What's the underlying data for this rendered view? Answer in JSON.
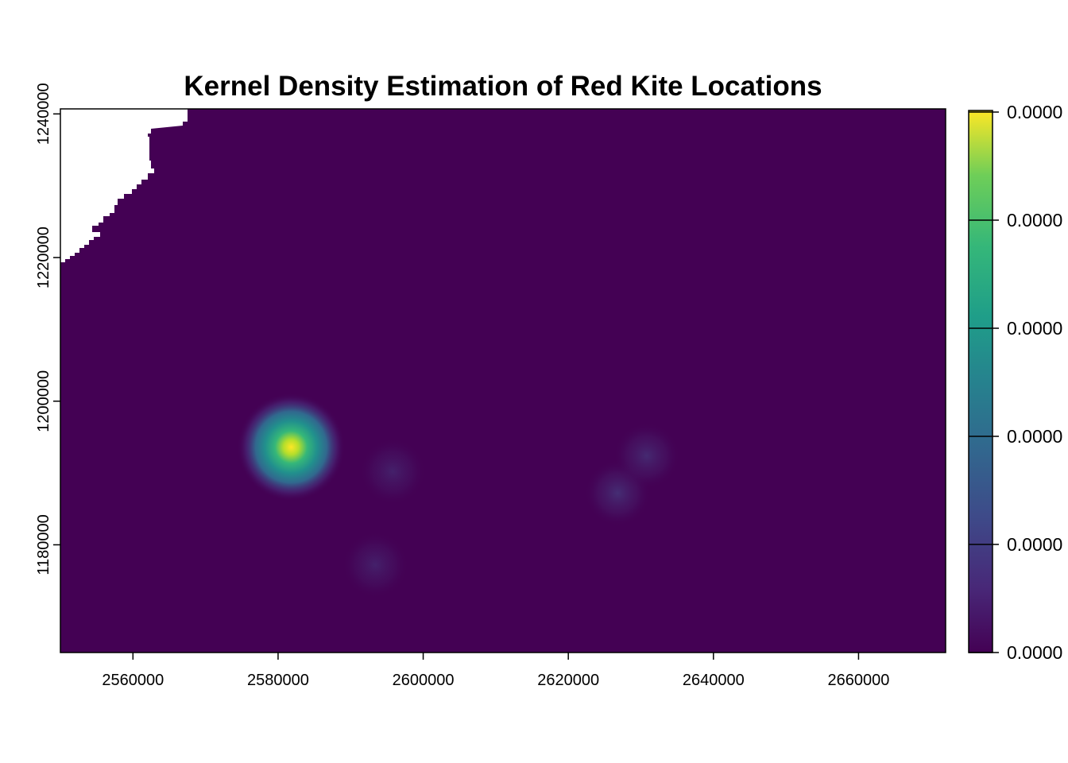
{
  "chart_data": {
    "type": "heatmap",
    "title": "Kernel Density Estimation of Red Kite Locations",
    "xlabel": "",
    "ylabel": "",
    "xlim": [
      2550000,
      2672000
    ],
    "ylim": [
      1165000,
      1240700
    ],
    "x_ticks": [
      "2560000",
      "2580000",
      "2600000",
      "2620000",
      "2640000",
      "2660000"
    ],
    "y_ticks": [
      "1180000",
      "1200000",
      "1220000",
      "1240000"
    ],
    "colorbar": {
      "tick_labels": [
        "0.0000",
        "0.0000",
        "0.0000",
        "0.0000",
        "0.0000",
        "0.0000"
      ],
      "colormap": "viridis",
      "colors": [
        "#440154",
        "#3b528b",
        "#21908d",
        "#5dc963",
        "#fde725"
      ]
    },
    "background_color": "#440154",
    "missing_region": "top-left",
    "hotspots": [
      {
        "x": 2581800,
        "y": 1193600,
        "relative_intensity": 1.0
      },
      {
        "x": 2626800,
        "y": 1187200,
        "relative_intensity": 0.06
      },
      {
        "x": 2630800,
        "y": 1192400,
        "relative_intensity": 0.05
      },
      {
        "x": 2595800,
        "y": 1190200,
        "relative_intensity": 0.03
      },
      {
        "x": 2593400,
        "y": 1177200,
        "relative_intensity": 0.03
      }
    ],
    "grid": false,
    "legend": "right"
  }
}
